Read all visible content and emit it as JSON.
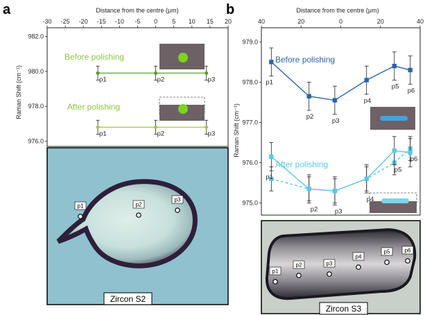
{
  "colors": {
    "a_series": "#5aa02c",
    "a_after": "#a8c936",
    "a_title": "#8cc63f",
    "b_before": "#2b63ae",
    "b_after": "#5bc8e6",
    "grain_bg": "#8fc1cf",
    "crystal_bg": "#c9cfc9",
    "inset_fill": "#6d6166",
    "inset_spot_green": "#7ed321",
    "inset_spot_blue": "#4a9fe0"
  },
  "chart_data": [
    {
      "panel": "a",
      "type": "scatter",
      "xlabel": "Distance from the centre (μm)",
      "ylabel": "Raman Shift (cm⁻¹)",
      "xlim": [
        -30,
        20
      ],
      "ylim": [
        975.7,
        982.5
      ],
      "xticks": [
        -30,
        -25,
        -20,
        -15,
        -10,
        -5,
        0,
        5,
        10,
        15,
        20
      ],
      "yticks": [
        976.0,
        978.0,
        980.0,
        982.0
      ],
      "ytick_labels": [
        "976.0",
        "978.0",
        "980.0",
        "982.0"
      ],
      "series": [
        {
          "key": "before",
          "title": "Before polishing",
          "x": [
            -16,
            0,
            14
          ],
          "y": [
            979.9,
            979.9,
            979.9
          ],
          "err": [
            0.4,
            0.4,
            0.4
          ],
          "labels": [
            "p1",
            "p2",
            "p3"
          ]
        },
        {
          "key": "after",
          "title": "After polishing",
          "x": [
            -16,
            0,
            14
          ],
          "y": [
            976.8,
            976.8,
            976.8
          ],
          "err": [
            0.4,
            0.4,
            0.4
          ],
          "labels": [
            "p1",
            "p2",
            "p3"
          ]
        }
      ]
    },
    {
      "panel": "b",
      "type": "line",
      "xlabel": "Distance from the centre (μm)",
      "ylabel": "Raman Shift (cm⁻¹)",
      "xlim": [
        40,
        -40
      ],
      "ylim": [
        974.7,
        979.35
      ],
      "xticks": [
        40,
        20,
        0,
        20,
        40
      ],
      "yticks": [
        975.0,
        976.0,
        977.0,
        978.0,
        979.0
      ],
      "ytick_labels": [
        "975.0",
        "976.0",
        "977.0",
        "978.0",
        "979.0"
      ],
      "labels": [
        "p1",
        "p2",
        "p3",
        "p4",
        "p5",
        "p6"
      ],
      "series": [
        {
          "key": "before",
          "title": "Before polishing",
          "style": "solid",
          "x": [
            35,
            16,
            3,
            -13,
            -27,
            -35
          ],
          "y": [
            978.5,
            977.65,
            977.55,
            978.05,
            978.4,
            978.3
          ],
          "err": [
            0.35,
            0.35,
            0.35,
            0.35,
            0.35,
            0.35
          ]
        },
        {
          "key": "after",
          "title": "After polishing",
          "style": "solid",
          "x": [
            35,
            16,
            3,
            -13,
            -27,
            -35
          ],
          "y": [
            976.15,
            975.35,
            975.3,
            975.6,
            976.3,
            976.25
          ],
          "err": [
            0.35,
            0.35,
            0.35,
            0.35,
            0.35,
            0.35
          ]
        },
        {
          "key": "after2",
          "style": "dashed",
          "x": [
            35,
            16,
            3,
            -13,
            -27,
            -35
          ],
          "y": [
            975.6,
            975.35,
            975.3,
            975.6,
            976.0,
            976.35
          ],
          "err": [
            0.3,
            0.3,
            0.3,
            0.3,
            0.3,
            0.3
          ]
        }
      ]
    }
  ],
  "panels": {
    "a": {
      "letter": "a",
      "image_caption": "Zircon S2",
      "spots": [
        "p1",
        "p2",
        "p3"
      ]
    },
    "b": {
      "letter": "b",
      "image_caption": "Zircon S3",
      "spots": [
        "p1",
        "p2",
        "p3",
        "p4",
        "p5",
        "p6"
      ]
    }
  }
}
